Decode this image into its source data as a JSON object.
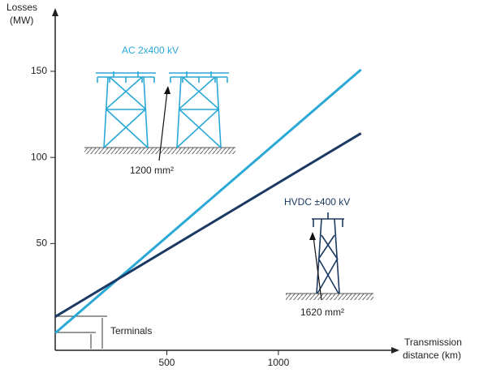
{
  "chart_data": {
    "type": "line",
    "y_label": [
      "Losses",
      "(MW)"
    ],
    "x_label": [
      "Transmission",
      "distance (km)"
    ],
    "x": [
      0,
      1370
    ],
    "series": [
      {
        "name": "AC 2x400 kV",
        "color": "#2aa8d6",
        "values": [
          -2,
          151
        ]
      },
      {
        "name": "HVDC ±400 kV",
        "color": "#1b3a63",
        "values": [
          7.5,
          114
        ]
      }
    ],
    "annotations": {
      "ac_conductor": "1200 mm²",
      "hvdc_conductor": "1620 mm²",
      "terminals": "Terminals"
    },
    "xlim": [
      0,
      1535
    ],
    "ylim": [
      -12,
      182
    ],
    "xticks": [
      500,
      1000
    ],
    "yticks": [
      50,
      100,
      150
    ]
  }
}
